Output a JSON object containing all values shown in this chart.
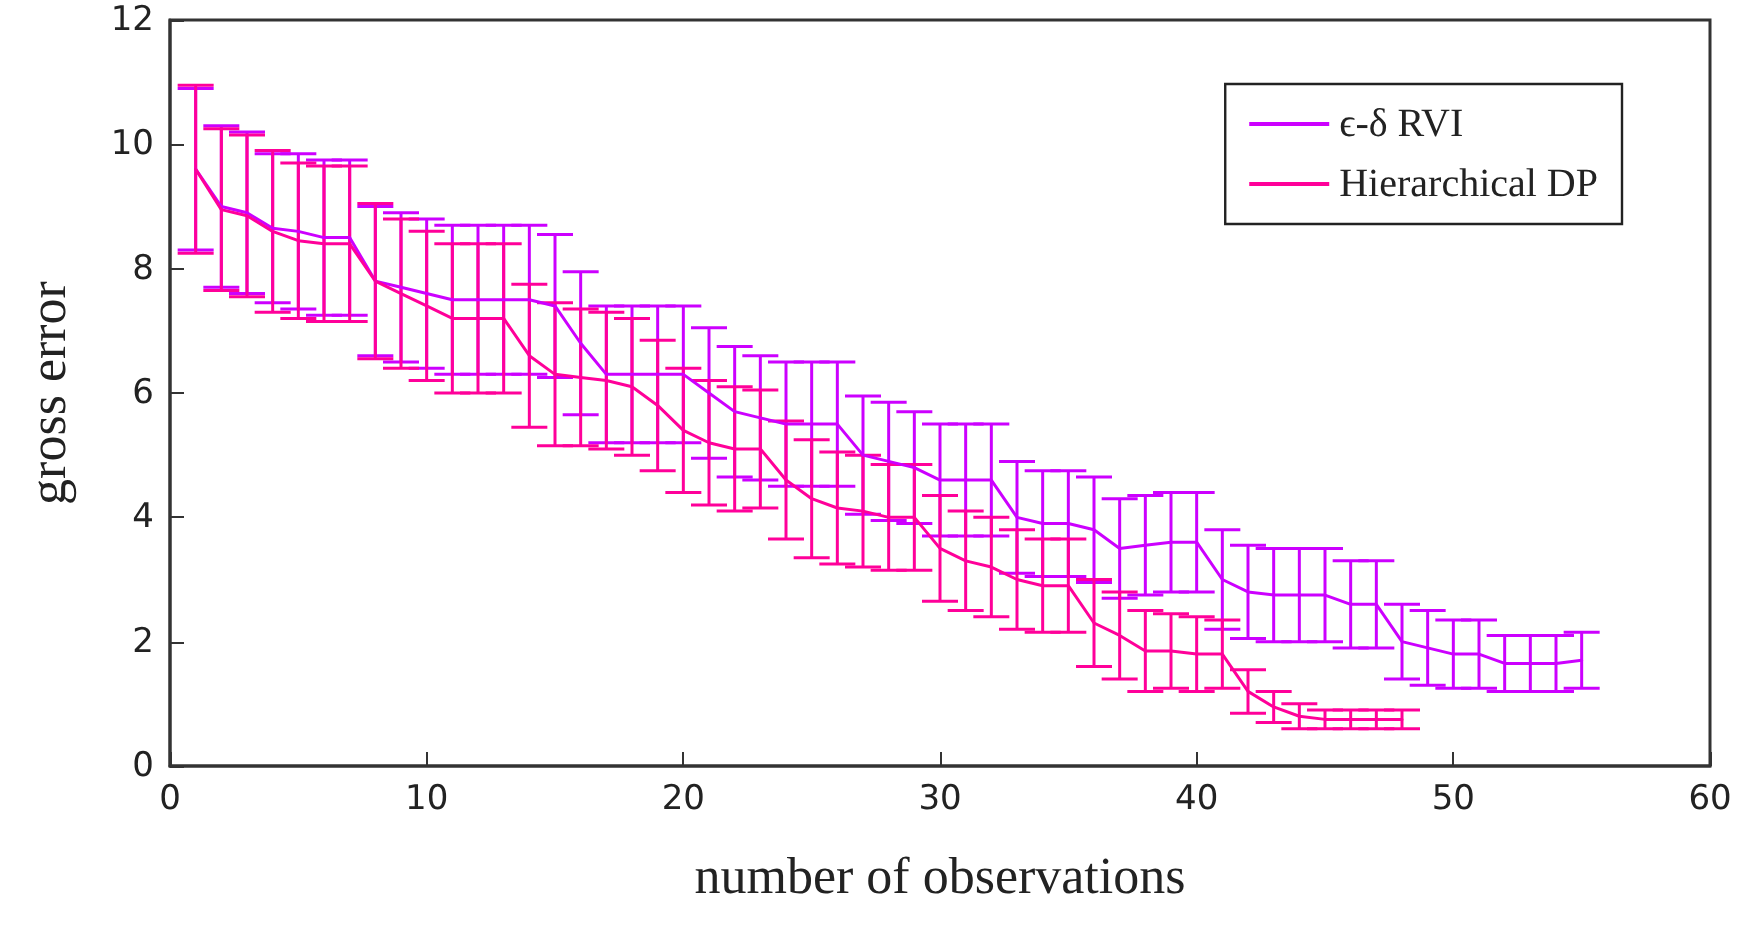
{
  "chart_data": {
    "type": "line",
    "xlabel": "number of observations",
    "ylabel": "gross error",
    "xlim": [
      0,
      60
    ],
    "xticks": [
      0,
      10,
      20,
      30,
      40,
      50,
      60
    ],
    "ylim": [
      0,
      12
    ],
    "yticks": [
      0,
      2,
      4,
      6,
      8,
      10,
      12
    ],
    "grid": false,
    "legend": "top right",
    "marker": "none",
    "line_style": "solid",
    "series": [
      {
        "name": "ϵ-δ RVI",
        "color": "#cc00ff",
        "x": [
          1,
          2,
          3,
          4,
          5,
          6,
          7,
          8,
          9,
          10,
          11,
          12,
          13,
          14,
          15,
          16,
          17,
          18,
          19,
          20,
          21,
          22,
          23,
          24,
          25,
          26,
          27,
          28,
          29,
          30,
          31,
          32,
          33,
          34,
          35,
          36,
          37,
          38,
          39,
          40,
          41,
          42,
          43,
          44,
          45,
          46,
          47,
          48,
          49,
          50,
          51,
          52,
          53,
          54,
          55
        ],
        "values": [
          9.6,
          9.0,
          8.9,
          8.65,
          8.6,
          8.5,
          8.5,
          7.8,
          7.7,
          7.6,
          7.5,
          7.5,
          7.5,
          7.5,
          7.4,
          6.8,
          6.3,
          6.3,
          6.3,
          6.3,
          6.0,
          5.7,
          5.6,
          5.5,
          5.5,
          5.5,
          5.0,
          4.9,
          4.8,
          4.6,
          4.6,
          4.6,
          4.0,
          3.9,
          3.9,
          3.8,
          3.5,
          3.55,
          3.6,
          3.6,
          3.0,
          2.8,
          2.75,
          2.75,
          2.75,
          2.6,
          2.6,
          2.0,
          1.9,
          1.8,
          1.8,
          1.65,
          1.65,
          1.65,
          1.7
        ],
        "errors": [
          1.3,
          1.3,
          1.3,
          1.2,
          1.25,
          1.25,
          1.25,
          1.2,
          1.2,
          1.2,
          1.2,
          1.2,
          1.2,
          1.2,
          1.15,
          1.15,
          1.1,
          1.1,
          1.1,
          1.1,
          1.05,
          1.05,
          1.0,
          1.0,
          1.0,
          1.0,
          0.95,
          0.95,
          0.9,
          0.9,
          0.9,
          0.9,
          0.9,
          0.85,
          0.85,
          0.85,
          0.8,
          0.8,
          0.8,
          0.8,
          0.8,
          0.75,
          0.75,
          0.75,
          0.75,
          0.7,
          0.7,
          0.6,
          0.6,
          0.55,
          0.55,
          0.45,
          0.45,
          0.45,
          0.45
        ]
      },
      {
        "name": "Hierarchical DP",
        "color": "#ff0099",
        "x": [
          1,
          2,
          3,
          4,
          5,
          6,
          7,
          8,
          9,
          10,
          11,
          12,
          13,
          14,
          15,
          16,
          17,
          18,
          19,
          20,
          21,
          22,
          23,
          24,
          25,
          26,
          27,
          28,
          29,
          30,
          31,
          32,
          33,
          34,
          35,
          36,
          37,
          38,
          39,
          40,
          41,
          42,
          43,
          44,
          45,
          46,
          47,
          48
        ],
        "values": [
          9.6,
          8.95,
          8.85,
          8.6,
          8.45,
          8.4,
          8.4,
          7.8,
          7.6,
          7.4,
          7.2,
          7.2,
          7.2,
          6.6,
          6.3,
          6.25,
          6.2,
          6.1,
          5.8,
          5.4,
          5.2,
          5.1,
          5.1,
          4.6,
          4.3,
          4.15,
          4.1,
          4.0,
          4.0,
          3.5,
          3.3,
          3.2,
          3.0,
          2.9,
          2.9,
          2.3,
          2.1,
          1.85,
          1.85,
          1.8,
          1.8,
          1.2,
          0.95,
          0.8,
          0.75,
          0.75,
          0.75,
          0.75
        ],
        "errors": [
          1.35,
          1.3,
          1.3,
          1.3,
          1.25,
          1.25,
          1.25,
          1.25,
          1.2,
          1.2,
          1.2,
          1.2,
          1.2,
          1.15,
          1.15,
          1.1,
          1.1,
          1.1,
          1.05,
          1.0,
          1.0,
          1.0,
          0.95,
          0.95,
          0.95,
          0.9,
          0.9,
          0.85,
          0.85,
          0.85,
          0.8,
          0.8,
          0.8,
          0.75,
          0.75,
          0.7,
          0.7,
          0.65,
          0.6,
          0.6,
          0.55,
          0.35,
          0.25,
          0.2,
          0.15,
          0.15,
          0.15,
          0.15
        ]
      }
    ]
  }
}
